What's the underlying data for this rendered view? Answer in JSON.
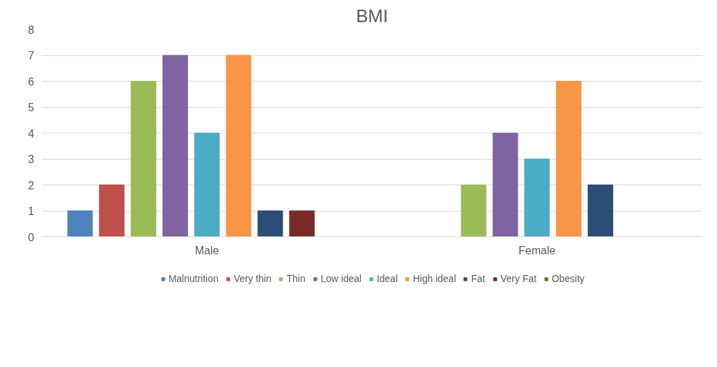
{
  "chart_data": {
    "type": "bar",
    "title": "BMI",
    "categories": [
      "Male",
      "Female"
    ],
    "series": [
      {
        "name": "Malnutrition",
        "color": "#4f81bd",
        "values": [
          1,
          0
        ]
      },
      {
        "name": "Very thin",
        "color": "#c0504d",
        "values": [
          2,
          0
        ]
      },
      {
        "name": "Thin",
        "color": "#9bbb59",
        "values": [
          6,
          2
        ]
      },
      {
        "name": "Low ideal",
        "color": "#8064a2",
        "values": [
          7,
          4
        ]
      },
      {
        "name": "Ideal",
        "color": "#4bacc6",
        "values": [
          4,
          3
        ]
      },
      {
        "name": "High ideal",
        "color": "#f79646",
        "values": [
          7,
          6
        ]
      },
      {
        "name": "Fat",
        "color": "#2c4d75",
        "values": [
          1,
          2
        ]
      },
      {
        "name": "Very Fat",
        "color": "#772c2a",
        "values": [
          1,
          0
        ]
      },
      {
        "name": "Obesity",
        "color": "#5f7530",
        "values": [
          0,
          0
        ]
      }
    ],
    "ylim": [
      0,
      8
    ],
    "yticks": [
      0,
      1,
      2,
      3,
      4,
      5,
      6,
      7,
      8
    ],
    "grid": "y",
    "legend": "bottom"
  }
}
